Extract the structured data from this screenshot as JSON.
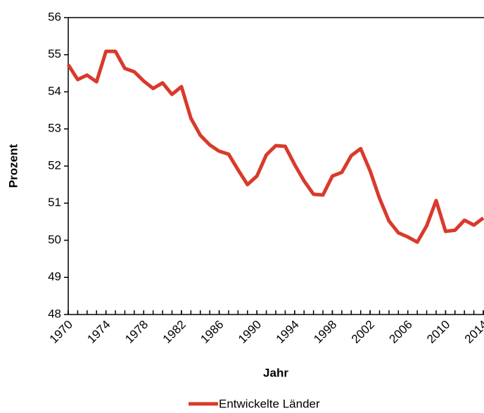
{
  "chart_data": {
    "type": "line",
    "x_label": "Jahr",
    "y_label": "Prozent",
    "x": [
      1970,
      1971,
      1972,
      1973,
      1974,
      1975,
      1976,
      1977,
      1978,
      1979,
      1980,
      1981,
      1982,
      1983,
      1984,
      1985,
      1986,
      1987,
      1988,
      1989,
      1990,
      1991,
      1992,
      1993,
      1994,
      1995,
      1996,
      1997,
      1998,
      1999,
      2000,
      2001,
      2002,
      2003,
      2004,
      2005,
      2006,
      2007,
      2008,
      2009,
      2010,
      2011,
      2012,
      2013,
      2014
    ],
    "series": [
      {
        "name": "Entwickelte Länder",
        "color": "#d93a2b",
        "values": [
          54.73,
          54.33,
          54.45,
          54.27,
          55.09,
          55.09,
          54.63,
          54.54,
          54.29,
          54.09,
          54.24,
          53.93,
          54.14,
          53.29,
          52.83,
          52.57,
          52.4,
          52.32,
          51.9,
          51.5,
          51.73,
          52.3,
          52.55,
          52.53,
          52.04,
          51.6,
          51.24,
          51.22,
          51.73,
          51.83,
          52.28,
          52.47,
          51.87,
          51.13,
          50.52,
          50.2,
          50.09,
          49.95,
          50.39,
          51.07,
          50.24,
          50.27,
          50.54,
          50.41,
          50.6
        ]
      }
    ],
    "xlim": [
      1970,
      2014
    ],
    "xticks": [
      1970,
      1974,
      1978,
      1982,
      1986,
      1990,
      1994,
      1998,
      2002,
      2006,
      2010,
      2014
    ],
    "ylim": [
      48,
      56
    ],
    "yticks": [
      48,
      49,
      50,
      51,
      52,
      53,
      54,
      55,
      56
    ],
    "legend": "bottom"
  }
}
